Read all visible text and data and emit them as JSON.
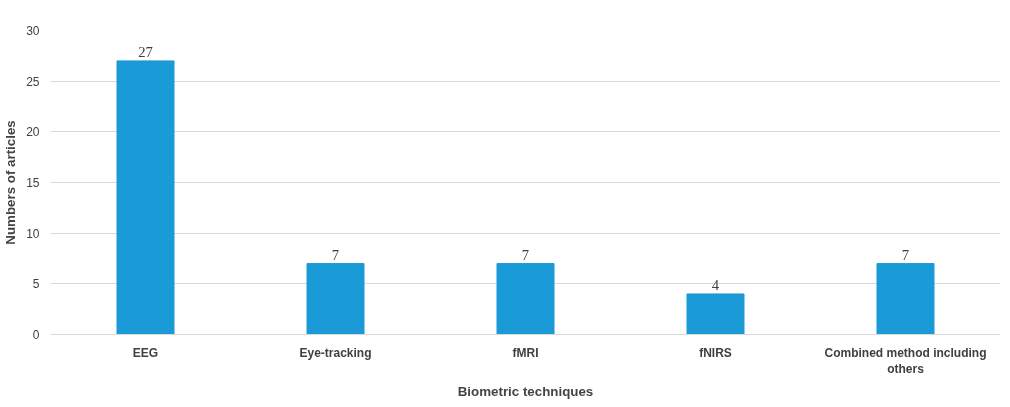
{
  "chart_data": {
    "type": "bar",
    "xlabel": "Biometric techniques",
    "ylabel": "Numbers of articles",
    "categories": [
      "EEG",
      "Eye-tracking",
      "fMRI",
      "fNIRS",
      "Combined method including others"
    ],
    "values": [
      27,
      7,
      7,
      4,
      7
    ],
    "color": "#1a9bd7",
    "ylim": [
      0,
      30
    ],
    "yticks": [
      0,
      5,
      10,
      15,
      20,
      25,
      30
    ],
    "grid": "y",
    "data_labels": true
  }
}
